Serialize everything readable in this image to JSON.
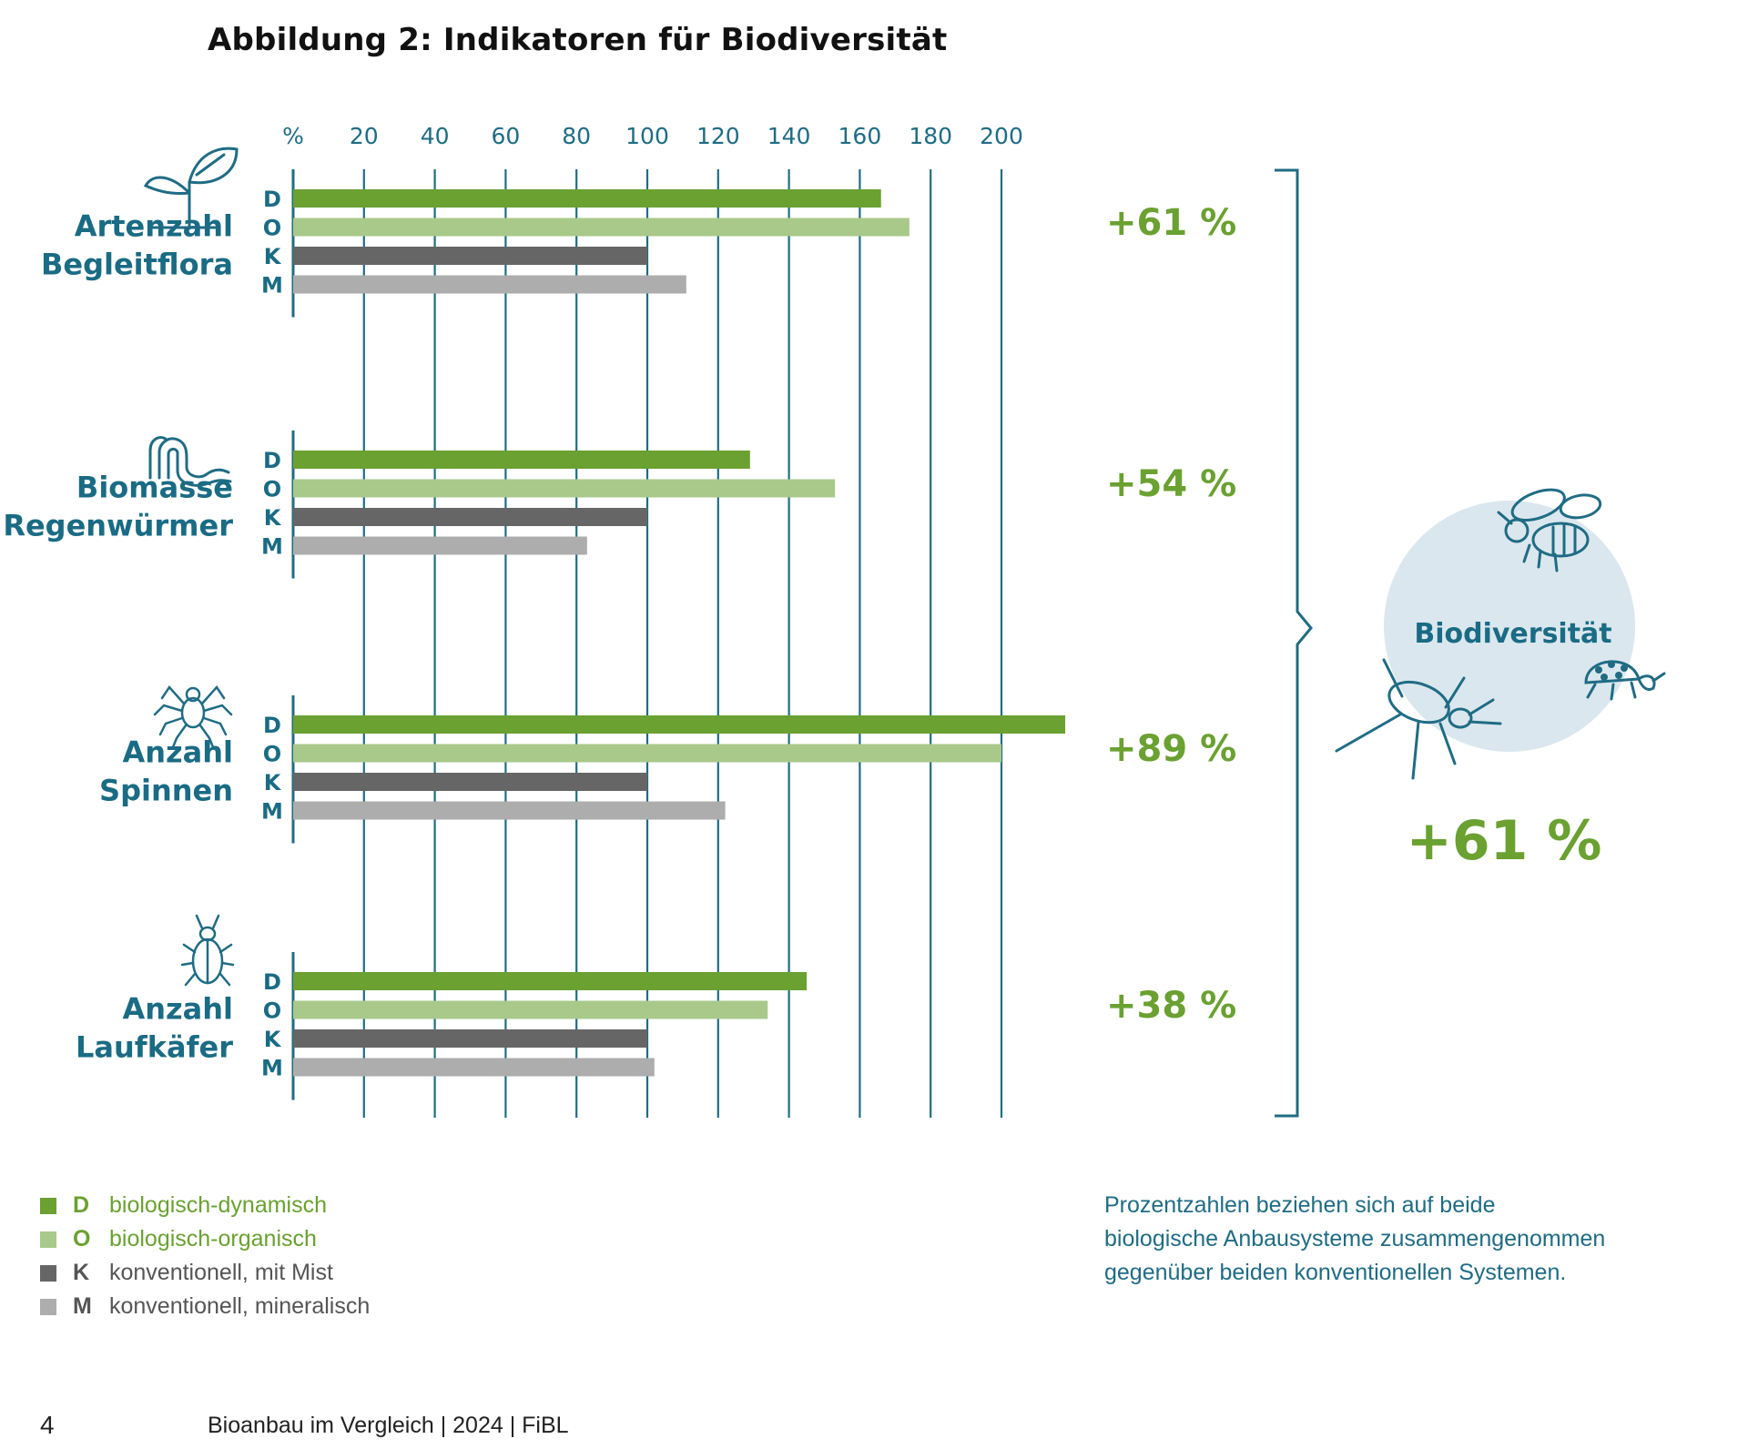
{
  "title": "Abbildung 2:  Indikatoren für Biodiversität",
  "colors": {
    "axis": "#1f6c84",
    "category_text": "#1a6b84",
    "D": "#6aa131",
    "O": "#a9c98a",
    "K": "#666666",
    "M": "#adadad",
    "percent_text": "#6aa131",
    "circle": "#dbe7ee"
  },
  "chart_data": {
    "type": "bar",
    "orientation": "horizontal",
    "x_unit_label": "%",
    "xticks": [
      20,
      40,
      60,
      80,
      100,
      120,
      140,
      160,
      180,
      200
    ],
    "xlim": [
      0,
      200
    ],
    "grid": true,
    "series_keys": [
      "D",
      "O",
      "K",
      "M"
    ],
    "groups": [
      {
        "label_lines": [
          "Artenzahl",
          "Begleitflora"
        ],
        "icon": "plant-icon",
        "change": "+61 %",
        "values": {
          "D": 166,
          "O": 174,
          "K": 100,
          "M": 111
        }
      },
      {
        "label_lines": [
          "Biomasse",
          "Regenwürmer"
        ],
        "icon": "worm-icon",
        "change": "+54 %",
        "values": {
          "D": 129,
          "O": 153,
          "K": 100,
          "M": 83
        }
      },
      {
        "label_lines": [
          "Anzahl",
          "Spinnen"
        ],
        "icon": "spider-icon",
        "change": "+89 %",
        "values": {
          "D": 218,
          "O": 200,
          "K": 100,
          "M": 122
        }
      },
      {
        "label_lines": [
          "Anzahl",
          "Laufkäfer"
        ],
        "icon": "beetle-icon",
        "change": "+38 %",
        "values": {
          "D": 145,
          "O": 134,
          "K": 100,
          "M": 102
        }
      }
    ],
    "summary": {
      "label": "Biodiversität",
      "value": "+61 %"
    }
  },
  "legend": [
    {
      "key": "D",
      "label": "biologisch-dynamisch",
      "color": "#6aa131",
      "text_color": "#6aa131"
    },
    {
      "key": "O",
      "label": "biologisch-organisch",
      "color": "#a9c98a",
      "text_color": "#6aa131"
    },
    {
      "key": "K",
      "label": "konventionell, mit Mist",
      "color": "#666666",
      "text_color": "#555555"
    },
    {
      "key": "M",
      "label": "konventionell, mineralisch",
      "color": "#adadad",
      "text_color": "#555555"
    }
  ],
  "note": "Prozentzahlen beziehen sich auf beide biologische Anbausysteme zusammengenommen gegenüber beiden konventionellen Systemen.",
  "footer": {
    "page": "4",
    "text": "Bioanbau im Vergleich  |  2024  |  FiBL"
  }
}
